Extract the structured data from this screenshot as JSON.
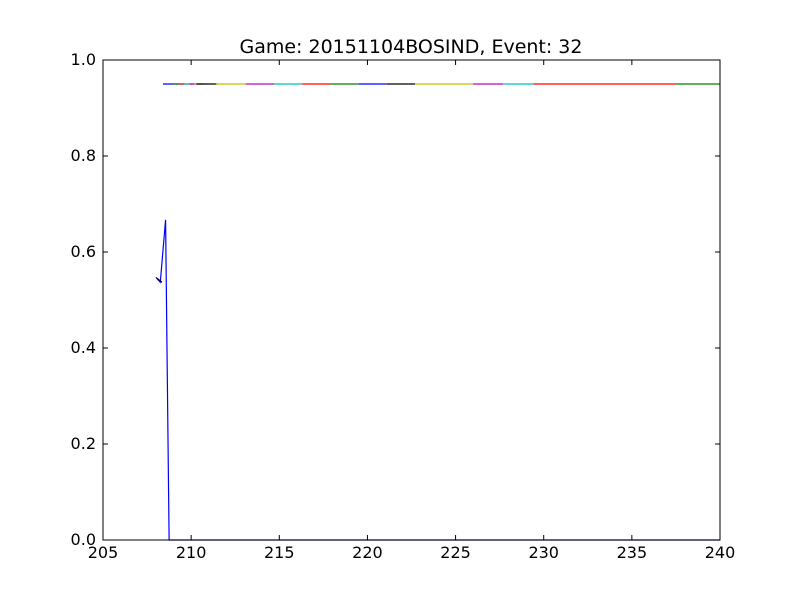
{
  "chart_data": {
    "type": "line",
    "title": "Game: 20151104BOSIND, Event: 32",
    "xlabel": "",
    "ylabel": "",
    "xlim": [
      205,
      240
    ],
    "ylim": [
      0.0,
      1.0
    ],
    "xticks": [
      205,
      210,
      215,
      220,
      225,
      230,
      235,
      240
    ],
    "xtick_labels": [
      "205",
      "210",
      "215",
      "220",
      "225",
      "230",
      "235",
      "240"
    ],
    "yticks": [
      0.0,
      0.2,
      0.4,
      0.6,
      0.8,
      1.0
    ],
    "ytick_labels": [
      "0.0",
      "0.2",
      "0.4",
      "0.6",
      "0.8",
      "1.0"
    ],
    "grid": false,
    "legend": "none",
    "series": [
      {
        "color": "#0000ff",
        "points": [
          [
            208.05,
            0.545
          ],
          [
            208.25,
            0.537
          ],
          [
            208.55,
            0.667
          ],
          [
            208.75,
            0.0
          ],
          [
            240.0,
            0.0
          ]
        ]
      },
      {
        "color": "#000000",
        "points": [
          [
            208.0,
            0.547
          ],
          [
            208.35,
            0.537
          ]
        ]
      },
      {
        "color": "#0000ff",
        "points": [
          [
            208.4,
            0.95
          ],
          [
            209.3,
            0.95
          ]
        ]
      },
      {
        "color": "#008000",
        "points": [
          [
            209.0,
            0.95
          ],
          [
            209.7,
            0.95
          ]
        ]
      },
      {
        "color": "#ff0000",
        "points": [
          [
            209.3,
            0.95
          ],
          [
            210.1,
            0.95
          ]
        ]
      },
      {
        "color": "#00bfbf",
        "points": [
          [
            209.6,
            0.95
          ],
          [
            210.4,
            0.95
          ]
        ]
      },
      {
        "color": "#bf00bf",
        "points": [
          [
            209.9,
            0.95
          ],
          [
            210.7,
            0.95
          ]
        ]
      },
      {
        "color": "#bfbf00",
        "points": [
          [
            210.2,
            0.95
          ],
          [
            210.9,
            0.95
          ]
        ]
      },
      {
        "color": "#000000",
        "points": [
          [
            210.3,
            0.95
          ],
          [
            211.5,
            0.95
          ]
        ]
      },
      {
        "color": "#bfbf00",
        "points": [
          [
            211.4,
            0.95
          ],
          [
            213.1,
            0.95
          ]
        ]
      },
      {
        "color": "#bf00bf",
        "points": [
          [
            213.1,
            0.95
          ],
          [
            214.7,
            0.95
          ]
        ]
      },
      {
        "color": "#00bfbf",
        "points": [
          [
            214.7,
            0.95
          ],
          [
            216.3,
            0.95
          ]
        ]
      },
      {
        "color": "#ff0000",
        "points": [
          [
            216.3,
            0.95
          ],
          [
            217.9,
            0.95
          ]
        ]
      },
      {
        "color": "#008000",
        "points": [
          [
            217.9,
            0.95
          ],
          [
            219.5,
            0.95
          ]
        ]
      },
      {
        "color": "#0000ff",
        "points": [
          [
            219.5,
            0.95
          ],
          [
            221.1,
            0.95
          ]
        ]
      },
      {
        "color": "#000000",
        "points": [
          [
            221.1,
            0.95
          ],
          [
            222.7,
            0.95
          ]
        ]
      },
      {
        "color": "#bfbf00",
        "points": [
          [
            222.7,
            0.95
          ],
          [
            226.0,
            0.95
          ]
        ]
      },
      {
        "color": "#bf00bf",
        "points": [
          [
            226.0,
            0.95
          ],
          [
            227.7,
            0.95
          ]
        ]
      },
      {
        "color": "#00bfbf",
        "points": [
          [
            227.7,
            0.95
          ],
          [
            229.4,
            0.95
          ]
        ]
      },
      {
        "color": "#ff0000",
        "points": [
          [
            229.4,
            0.95
          ],
          [
            237.5,
            0.95
          ]
        ]
      },
      {
        "color": "#008000",
        "points": [
          [
            237.5,
            0.95
          ],
          [
            240.0,
            0.95
          ]
        ]
      }
    ]
  }
}
